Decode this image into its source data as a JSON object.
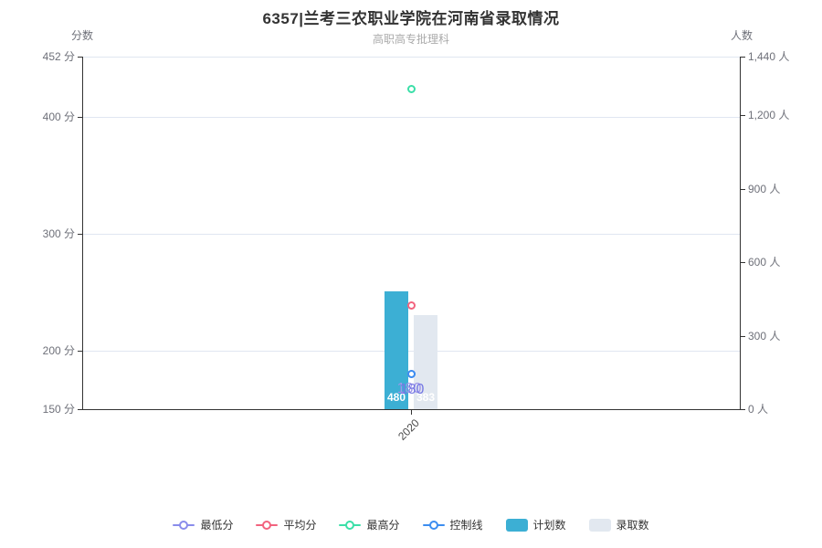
{
  "chart_data": {
    "type": "bar",
    "title": "6357|兰考三农职业学院在河南省录取情况",
    "subtitle": "高职高专批理科",
    "categories": [
      "2020"
    ],
    "series": [
      {
        "name": "最低分",
        "type": "scatter",
        "color": "#898CEB",
        "values": [
          180
        ],
        "show_label": true,
        "label_color": "#A095EA"
      },
      {
        "name": "平均分",
        "type": "scatter",
        "color": "#F2637E",
        "values": [
          239
        ],
        "show_label": false,
        "label_color": "#F2637E"
      },
      {
        "name": "最高分",
        "type": "scatter",
        "color": "#3BDFA8",
        "values": [
          424
        ],
        "show_label": false,
        "label_color": "#3BDFA8"
      },
      {
        "name": "控制线",
        "type": "scatter",
        "color": "#3C8DF0",
        "values": [
          180
        ],
        "show_label": true,
        "label_color": "#7477E3"
      },
      {
        "name": "计划数",
        "type": "bar",
        "color": "#3CAFD4",
        "values": [
          480
        ],
        "show_label": true,
        "label_color": "#FFFFFF"
      },
      {
        "name": "录取数",
        "type": "bar",
        "color": "#E2E8F0",
        "values": [
          383
        ],
        "show_label": true,
        "label_color": "#FFFFFF"
      }
    ],
    "y_left": {
      "name": "分数",
      "unit": "分",
      "min": 150,
      "max": 452,
      "ticks": [
        452,
        400,
        300,
        200,
        150
      ]
    },
    "y_right": {
      "name": "人数",
      "unit": "人",
      "min": 0,
      "max": 1440,
      "ticks": [
        1440,
        1200,
        900,
        600,
        300,
        0
      ]
    },
    "legend_position": "bottom",
    "grid": true,
    "colors": {
      "title": "#333333",
      "subtitle": "#aaaaaa",
      "axis_line": "#333333",
      "axis_label": "#6E7079",
      "gridline": "#E0E6F1",
      "x_label": "#4a4a4a"
    }
  }
}
